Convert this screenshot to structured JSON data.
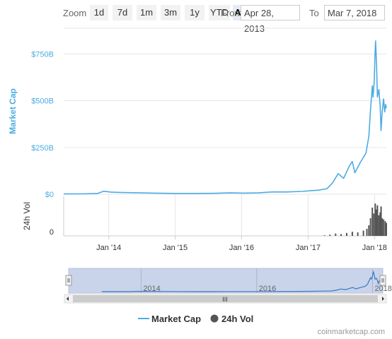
{
  "toolbar": {
    "zoom_label": "Zoom",
    "buttons": [
      "1d",
      "7d",
      "1m",
      "3m",
      "1y",
      "YTD",
      "ALL"
    ],
    "active_button": "ALL",
    "from_label": "From",
    "from_value": "Apr 28, 2013",
    "to_label": "To",
    "to_value": "Mar 7, 2018"
  },
  "colors": {
    "market_cap": "#4dabe3",
    "volume": "#555555",
    "navigator_fill": "#c9d4ea"
  },
  "chart_data": {
    "type": "line",
    "title": "",
    "x_range": [
      "2013-04-28",
      "2018-03-07"
    ],
    "x_tick_labels": [
      "Jan '14",
      "Jan '15",
      "Jan '16",
      "Jan '17",
      "Jan '18"
    ],
    "series": [
      {
        "name": "Market Cap",
        "axis": "Market Cap",
        "unit": "USD",
        "points": [
          [
            "2013-04-28",
            1.5
          ],
          [
            "2013-08-01",
            2
          ],
          [
            "2013-11-01",
            4
          ],
          [
            "2013-12-04",
            16
          ],
          [
            "2014-01-15",
            11
          ],
          [
            "2014-03-01",
            10
          ],
          [
            "2014-06-01",
            8
          ],
          [
            "2014-09-01",
            6
          ],
          [
            "2015-01-15",
            4
          ],
          [
            "2015-04-01",
            4
          ],
          [
            "2015-08-01",
            5
          ],
          [
            "2015-11-01",
            7
          ],
          [
            "2016-01-15",
            6
          ],
          [
            "2016-04-01",
            7
          ],
          [
            "2016-06-15",
            12
          ],
          [
            "2016-09-01",
            12
          ],
          [
            "2016-12-01",
            15
          ],
          [
            "2017-01-05",
            18
          ],
          [
            "2017-03-01",
            22
          ],
          [
            "2017-04-15",
            30
          ],
          [
            "2017-05-15",
            60
          ],
          [
            "2017-06-15",
            110
          ],
          [
            "2017-07-15",
            85
          ],
          [
            "2017-08-15",
            150
          ],
          [
            "2017-09-01",
            175
          ],
          [
            "2017-09-15",
            115
          ],
          [
            "2017-10-15",
            170
          ],
          [
            "2017-11-15",
            220
          ],
          [
            "2017-12-01",
            310
          ],
          [
            "2017-12-10",
            450
          ],
          [
            "2017-12-20",
            580
          ],
          [
            "2017-12-24",
            520
          ],
          [
            "2017-12-30",
            600
          ],
          [
            "2018-01-04",
            760
          ],
          [
            "2018-01-07",
            820
          ],
          [
            "2018-01-12",
            700
          ],
          [
            "2018-01-17",
            520
          ],
          [
            "2018-01-25",
            560
          ],
          [
            "2018-02-01",
            470
          ],
          [
            "2018-02-06",
            340
          ],
          [
            "2018-02-12",
            440
          ],
          [
            "2018-02-20",
            510
          ],
          [
            "2018-02-26",
            440
          ],
          [
            "2018-03-03",
            480
          ],
          [
            "2018-03-07",
            460
          ]
        ]
      },
      {
        "name": "24h Vol",
        "axis": "24h Vol",
        "unit": "USD",
        "points": [
          [
            "2017-04-01",
            1
          ],
          [
            "2017-05-01",
            2
          ],
          [
            "2017-06-01",
            4
          ],
          [
            "2017-07-01",
            3
          ],
          [
            "2017-08-01",
            5
          ],
          [
            "2017-09-01",
            7
          ],
          [
            "2017-10-01",
            6
          ],
          [
            "2017-11-01",
            9
          ],
          [
            "2017-11-20",
            12
          ],
          [
            "2017-12-01",
            18
          ],
          [
            "2017-12-10",
            30
          ],
          [
            "2017-12-20",
            48
          ],
          [
            "2017-12-28",
            38
          ],
          [
            "2018-01-05",
            55
          ],
          [
            "2018-01-10",
            45
          ],
          [
            "2018-01-17",
            52
          ],
          [
            "2018-01-25",
            35
          ],
          [
            "2018-02-01",
            40
          ],
          [
            "2018-02-06",
            50
          ],
          [
            "2018-02-12",
            30
          ],
          [
            "2018-02-20",
            28
          ],
          [
            "2018-03-01",
            25
          ],
          [
            "2018-03-07",
            22
          ]
        ]
      }
    ],
    "y_axes": [
      {
        "label": "Market Cap",
        "range": [
          0,
          850
        ],
        "ticks": [
          0,
          250,
          500,
          750
        ],
        "tick_labels": [
          "$0",
          "$250B",
          "$500B",
          "$750B"
        ]
      },
      {
        "label": "24h Vol",
        "range": [
          0,
          60
        ],
        "ticks": [
          0
        ],
        "tick_labels": [
          "0"
        ]
      }
    ],
    "navigator": {
      "range": [
        "2012-10-01",
        "2018-03-07"
      ],
      "tick_labels": [
        "2014",
        "2016",
        "2018"
      ]
    },
    "grid": true,
    "legend_position": "bottom"
  },
  "legend": {
    "market_cap": "Market Cap",
    "volume": "24h Vol"
  },
  "credit": "coinmarketcap.com",
  "scrollbar": {
    "grip": "III"
  }
}
